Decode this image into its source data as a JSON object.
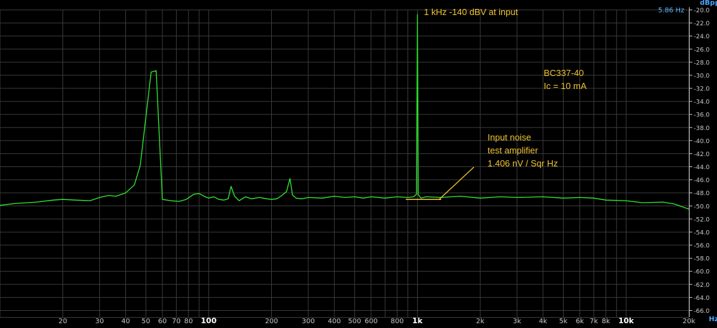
{
  "colors": {
    "background": "#000000",
    "grid": "#3a3a3a",
    "trace": "#2fe82f",
    "annotation_text": "#f0c430",
    "marker_line": "#f0c430",
    "axis_label": "#c8c8c8",
    "unit_label": "#4da6ff",
    "resolution_readout": "#5fb8ff"
  },
  "header": {
    "resolution": "5.86 Hz"
  },
  "chart_data": {
    "type": "line",
    "title": "",
    "xlabel": "Hz",
    "ylabel": "dBpp",
    "xscale": "log",
    "xlim": [
      10,
      20000
    ],
    "ylim": [
      -67,
      -20
    ],
    "grid": true,
    "x_tick_labels": [
      {
        "value": 20,
        "label": "20"
      },
      {
        "value": 30,
        "label": "30"
      },
      {
        "value": 40,
        "label": "40"
      },
      {
        "value": 50,
        "label": "50"
      },
      {
        "value": 60,
        "label": "60"
      },
      {
        "value": 70,
        "label": "70"
      },
      {
        "value": 80,
        "label": "80"
      },
      {
        "value": 100,
        "label": "100"
      },
      {
        "value": 200,
        "label": "200"
      },
      {
        "value": 300,
        "label": "300"
      },
      {
        "value": 400,
        "label": "400"
      },
      {
        "value": 500,
        "label": "500"
      },
      {
        "value": 600,
        "label": "600"
      },
      {
        "value": 800,
        "label": "800"
      },
      {
        "value": 1000,
        "label": "1k"
      },
      {
        "value": 2000,
        "label": "2k"
      },
      {
        "value": 3000,
        "label": "3k"
      },
      {
        "value": 4000,
        "label": "4k"
      },
      {
        "value": 5000,
        "label": "5k"
      },
      {
        "value": 6000,
        "label": "6k"
      },
      {
        "value": 7000,
        "label": "7k"
      },
      {
        "value": 8000,
        "label": "8k"
      },
      {
        "value": 10000,
        "label": "10k"
      },
      {
        "value": 20000,
        "label": "20k"
      }
    ],
    "y_ticks": [
      -20,
      -22,
      -24,
      -26,
      -28,
      -30,
      -32,
      -34,
      -36,
      -38,
      -40,
      -42,
      -44,
      -46,
      -48,
      -50,
      -52,
      -54,
      -56,
      -58,
      -60,
      -62,
      -64,
      -66
    ],
    "y_tick_labels": [
      "-20.0",
      "-22.0",
      "-24.0",
      "-26.0",
      "-28.0",
      "-30.0",
      "-32.0",
      "-34.0",
      "-36.0",
      "-38.0",
      "-40.0",
      "-42.0",
      "-44.0",
      "-46.0",
      "-48.0",
      "-50.0",
      "-52.0",
      "-54.0",
      "-56.0",
      "-58.0",
      "-60.0",
      "-62.0",
      "-64.0",
      "-66.0"
    ],
    "series": [
      {
        "color": "#2fe82f",
        "x": [
          10,
          12,
          15,
          18,
          20,
          23,
          27,
          30,
          33,
          36,
          40,
          44,
          47,
          53,
          56,
          60,
          66,
          72,
          78,
          85,
          90,
          96,
          100,
          106,
          112,
          118,
          124,
          128,
          133,
          140,
          150,
          160,
          175,
          190,
          200,
          212,
          224,
          236,
          245,
          252,
          262,
          280,
          300,
          350,
          400,
          450,
          500,
          550,
          600,
          700,
          800,
          900,
          960,
          990,
          1000,
          1010,
          1040,
          1100,
          1300,
          1600,
          2000,
          2500,
          3000,
          4000,
          5000,
          6000,
          7000,
          8000,
          10000,
          12000,
          15000,
          17000,
          18500,
          20000
        ],
        "y": [
          -49.9,
          -49.6,
          -49.4,
          -49.1,
          -49.0,
          -49.1,
          -49.2,
          -48.7,
          -48.4,
          -48.5,
          -48.0,
          -46.8,
          -43.8,
          -29.5,
          -29.3,
          -49.0,
          -49.2,
          -49.3,
          -49.0,
          -48.2,
          -48.1,
          -48.6,
          -48.8,
          -48.6,
          -49.0,
          -49.1,
          -48.9,
          -47.0,
          -48.5,
          -49.2,
          -48.6,
          -48.9,
          -48.7,
          -48.9,
          -49.0,
          -48.9,
          -48.4,
          -47.8,
          -45.8,
          -48.3,
          -48.8,
          -48.9,
          -48.7,
          -48.8,
          -48.5,
          -48.7,
          -48.6,
          -48.8,
          -48.6,
          -48.8,
          -48.6,
          -48.7,
          -48.6,
          -48.2,
          -20.7,
          -48.3,
          -48.8,
          -48.6,
          -48.7,
          -48.5,
          -48.8,
          -48.6,
          -48.7,
          -48.6,
          -48.8,
          -48.7,
          -48.8,
          -49.1,
          -49.2,
          -49.5,
          -49.4,
          -49.7,
          -50.1,
          -50.5
        ]
      }
    ],
    "annotations": [
      {
        "text": "1 kHz -140 dBV at input"
      },
      {
        "text": "BC337-40"
      },
      {
        "text": "Ic = 10 mA"
      },
      {
        "text": "Input noise"
      },
      {
        "text": "test amplifier"
      },
      {
        "text": "1.406 nV / Sqr Hz"
      }
    ],
    "noise_floor_marker": {
      "x_start": 880,
      "x_end": 1300,
      "y": -49.0
    }
  }
}
